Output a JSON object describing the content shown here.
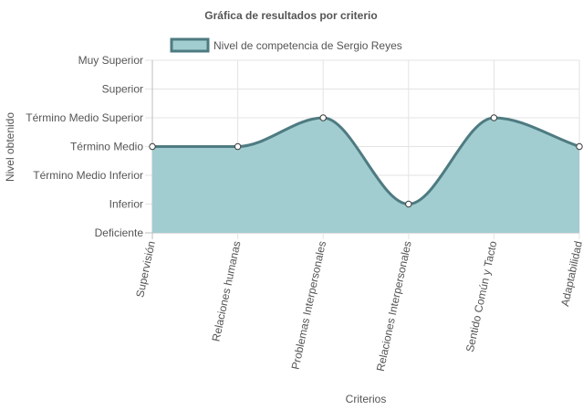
{
  "chart_data": {
    "type": "area",
    "title": "Gráfica de resultados por criterio",
    "xlabel": "Criterios",
    "ylabel": "Nivel obtenido",
    "categories": [
      "Supervisión",
      "Relaciones humanas",
      "Problemas Interpersonales",
      "Relaciones Interpersonales",
      "Sentido Común y Tacto",
      "Adaptabilidad"
    ],
    "y_levels": [
      "Deficiente",
      "Inferior",
      "Término Medio Inferior",
      "Término Medio",
      "Término Medio Superior",
      "Superior",
      "Muy Superior"
    ],
    "ylim": [
      0,
      6
    ],
    "series": [
      {
        "name": "Nivel de competencia de Sergio Reyes",
        "values": [
          3,
          3,
          4,
          1,
          4,
          3
        ],
        "fill_color": "#a1cdd0",
        "line_color": "#4e7b81"
      }
    ],
    "legend_position": "top",
    "grid": true
  }
}
